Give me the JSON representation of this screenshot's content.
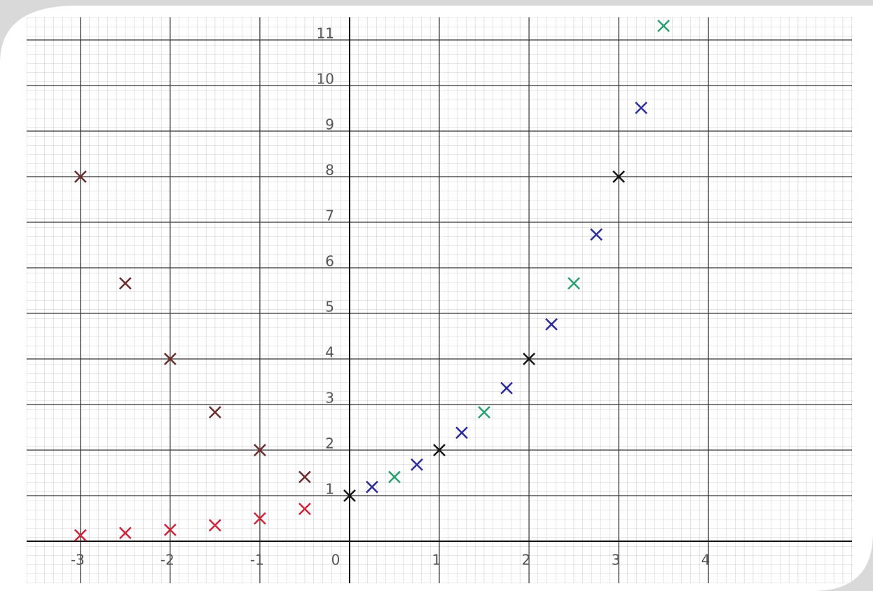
{
  "chart_data": {
    "type": "scatter",
    "xlim": [
      -3.6,
      5.6
    ],
    "ylim": [
      0,
      11.5
    ],
    "xticks": [
      -3,
      -2,
      -1,
      0,
      1,
      2,
      3,
      4
    ],
    "yticks": [
      1,
      2,
      3,
      4,
      5,
      6,
      7,
      8,
      9,
      10,
      11
    ],
    "grid": true,
    "series": [
      {
        "color": "#6b2c2c",
        "x": [
          -3,
          -2.5,
          -2,
          -1.5,
          -1,
          -0.5
        ],
        "values": [
          8,
          5.66,
          4,
          2.83,
          2,
          1.41
        ]
      },
      {
        "color": "#d0243a",
        "x": [
          -3,
          -2.5,
          -2,
          -1.5,
          -1,
          -0.5
        ],
        "values": [
          0.13,
          0.18,
          0.25,
          0.35,
          0.5,
          0.71
        ]
      },
      {
        "color": "#151515",
        "x": [
          0,
          1,
          2,
          3
        ],
        "values": [
          1,
          2,
          4,
          8
        ]
      },
      {
        "color": "#2aa070",
        "x": [
          0.5,
          1.5,
          2.5,
          3.5
        ],
        "values": [
          1.41,
          2.83,
          5.66,
          11.31
        ]
      },
      {
        "color": "#2b2c9c",
        "x": [
          0.25,
          0.75,
          1.25,
          1.75,
          2.25,
          2.75,
          3.25
        ],
        "values": [
          1.19,
          1.68,
          2.38,
          3.36,
          4.76,
          6.73,
          9.51
        ]
      }
    ]
  }
}
